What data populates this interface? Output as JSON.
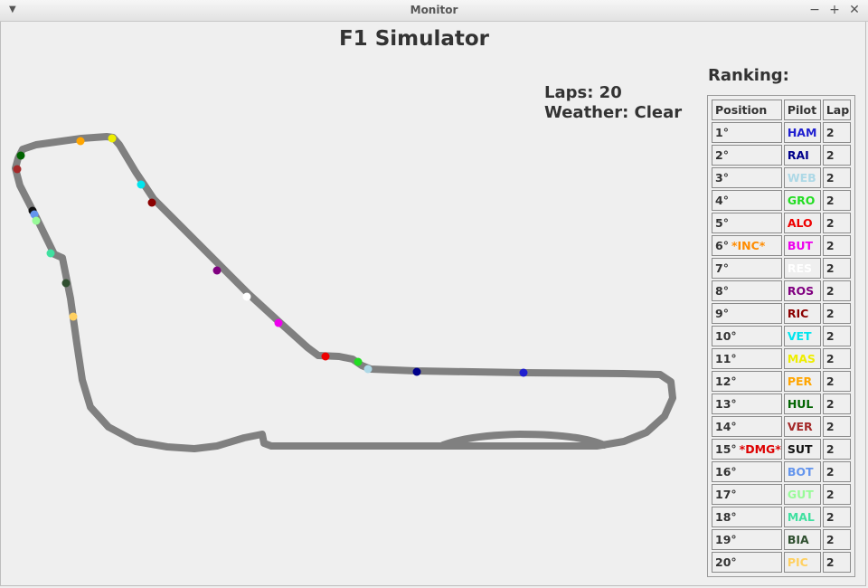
{
  "window": {
    "title": "Monitor"
  },
  "app": {
    "title": "F1 Simulator"
  },
  "info": {
    "laps": "Laps: 20",
    "weather": "Weather: Clear"
  },
  "ranking": {
    "title": "Ranking:",
    "headers": [
      "Position",
      "Pilot",
      "Lap"
    ],
    "rows": [
      {
        "pos": "1°",
        "flag": "",
        "flag_color": "",
        "pilot": "HAM",
        "color": "#1f1fd0",
        "lap": "2"
      },
      {
        "pos": "2°",
        "flag": "",
        "flag_color": "",
        "pilot": "RAI",
        "color": "#00008b",
        "lap": "2"
      },
      {
        "pos": "3°",
        "flag": "",
        "flag_color": "",
        "pilot": "WEB",
        "color": "#add8e6",
        "lap": "2"
      },
      {
        "pos": "4°",
        "flag": "",
        "flag_color": "",
        "pilot": "GRO",
        "color": "#22dd22",
        "lap": "2"
      },
      {
        "pos": "5°",
        "flag": "",
        "flag_color": "",
        "pilot": "ALO",
        "color": "#ee0000",
        "lap": "2"
      },
      {
        "pos": "6°",
        "flag": "*INC*",
        "flag_color": "#ff8c00",
        "pilot": "BUT",
        "color": "#ee00ee",
        "lap": "2"
      },
      {
        "pos": "7°",
        "flag": "",
        "flag_color": "",
        "pilot": "RES",
        "color": "#ffffff",
        "lap": "2"
      },
      {
        "pos": "8°",
        "flag": "",
        "flag_color": "",
        "pilot": "ROS",
        "color": "#800080",
        "lap": "2"
      },
      {
        "pos": "9°",
        "flag": "",
        "flag_color": "",
        "pilot": "RIC",
        "color": "#8b0000",
        "lap": "2"
      },
      {
        "pos": "10°",
        "flag": "",
        "flag_color": "",
        "pilot": "VET",
        "color": "#00e5ee",
        "lap": "2"
      },
      {
        "pos": "11°",
        "flag": "",
        "flag_color": "",
        "pilot": "MAS",
        "color": "#eeee00",
        "lap": "2"
      },
      {
        "pos": "12°",
        "flag": "",
        "flag_color": "",
        "pilot": "PER",
        "color": "#ffa500",
        "lap": "2"
      },
      {
        "pos": "13°",
        "flag": "",
        "flag_color": "",
        "pilot": "HUL",
        "color": "#006400",
        "lap": "2"
      },
      {
        "pos": "14°",
        "flag": "",
        "flag_color": "",
        "pilot": "VER",
        "color": "#a52a2a",
        "lap": "2"
      },
      {
        "pos": "15°",
        "flag": "*DMG*",
        "flag_color": "#dd0000",
        "pilot": "SUT",
        "color": "#111111",
        "lap": "2"
      },
      {
        "pos": "16°",
        "flag": "",
        "flag_color": "",
        "pilot": "BOT",
        "color": "#6495ed",
        "lap": "2"
      },
      {
        "pos": "17°",
        "flag": "",
        "flag_color": "",
        "pilot": "GUT",
        "color": "#98fb98",
        "lap": "2"
      },
      {
        "pos": "18°",
        "flag": "",
        "flag_color": "",
        "pilot": "MAL",
        "color": "#40e0a0",
        "lap": "2"
      },
      {
        "pos": "19°",
        "flag": "",
        "flag_color": "",
        "pilot": "BIA",
        "color": "#2f4f2f",
        "lap": "2"
      },
      {
        "pos": "20°",
        "flag": "",
        "flag_color": "",
        "pilot": "PIC",
        "color": "#ffd060",
        "lap": "2"
      }
    ]
  },
  "cars": [
    {
      "pilot": "HAM",
      "color": "#1f1fd0"
    },
    {
      "pilot": "RAI",
      "color": "#00008b"
    },
    {
      "pilot": "WEB",
      "color": "#add8e6"
    },
    {
      "pilot": "GRO",
      "color": "#22dd22"
    },
    {
      "pilot": "ALO",
      "color": "#ee0000"
    },
    {
      "pilot": "BUT",
      "color": "#ee00ee"
    },
    {
      "pilot": "RES",
      "color": "#ffffff"
    },
    {
      "pilot": "ROS",
      "color": "#800080"
    },
    {
      "pilot": "RIC",
      "color": "#8b0000"
    },
    {
      "pilot": "VET",
      "color": "#00e5ee"
    },
    {
      "pilot": "MAS",
      "color": "#eeee00"
    },
    {
      "pilot": "PER",
      "color": "#ffa500"
    },
    {
      "pilot": "HUL",
      "color": "#006400"
    },
    {
      "pilot": "VER",
      "color": "#a52a2a"
    },
    {
      "pilot": "SUT",
      "color": "#111111"
    },
    {
      "pilot": "BOT",
      "color": "#6495ed"
    },
    {
      "pilot": "GUT",
      "color": "#98fb98"
    },
    {
      "pilot": "MAL",
      "color": "#40e0a0"
    },
    {
      "pilot": "BIA",
      "color": "#2f4f2f"
    },
    {
      "pilot": "PIC",
      "color": "#ffd060"
    }
  ],
  "colors": {
    "track": "#808080",
    "background": "#efefef"
  }
}
